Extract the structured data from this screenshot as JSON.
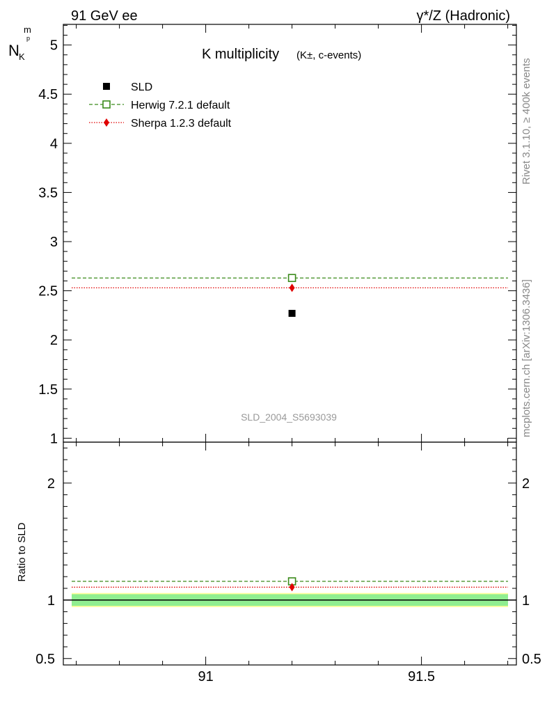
{
  "header": {
    "left": "91 GeV ee",
    "right": "γ*/Z (Hadronic)"
  },
  "side_labels": {
    "rivet": "Rivet 3.1.10, ≥ 400k events",
    "mcplots": "mcplots.cern.ch [arXiv:1306.3436]"
  },
  "colors": {
    "data": "#000000",
    "herwig": "#3a8a1a",
    "sherpa": "#e00000",
    "band_inner": "#90ee90",
    "band_outer": "#ffff99"
  },
  "chart_data": [
    {
      "type": "scatter",
      "title": "K multiplicity",
      "title_suffix": "(K±, c-events)",
      "ylabel": "N",
      "ylabel_sub": "K",
      "ylabel_sup": "p",
      "ylabel_sub2": "m",
      "watermark": "SLD_2004_S5693039",
      "x_range": [
        90.67,
        91.72
      ],
      "ylim": [
        0.96,
        5.21
      ],
      "y_ticks": [
        "1",
        "1.5",
        "2",
        "2.5",
        "3",
        "3.5",
        "4",
        "4.5",
        "5"
      ],
      "legend_position": "top-left",
      "series": [
        {
          "name": "SLD",
          "style": "data",
          "x": [
            91.2
          ],
          "values": [
            2.27
          ]
        },
        {
          "name": "Herwig 7.2.1 default",
          "style": "herwig",
          "x": [
            91.2
          ],
          "values": [
            2.63
          ]
        },
        {
          "name": "Sherpa 1.2.3 default",
          "style": "sherpa",
          "x": [
            91.2
          ],
          "values": [
            2.53
          ]
        }
      ]
    },
    {
      "type": "scatter",
      "ylabel": "Ratio to SLD",
      "x_ticks": [
        "91",
        "91.5"
      ],
      "x_range": [
        90.67,
        91.72
      ],
      "ylim": [
        0.445,
        2.35
      ],
      "y_ticks": [
        "0.5",
        "1",
        "2"
      ],
      "band": {
        "inner": [
          0.95,
          1.05
        ],
        "outer": [
          0.94,
          1.06
        ]
      },
      "series": [
        {
          "name": "Herwig 7.2.1 default",
          "style": "herwig",
          "x": [
            91.2
          ],
          "values": [
            1.16
          ]
        },
        {
          "name": "Sherpa 1.2.3 default",
          "style": "sherpa",
          "x": [
            91.2
          ],
          "values": [
            1.11
          ]
        }
      ]
    }
  ]
}
